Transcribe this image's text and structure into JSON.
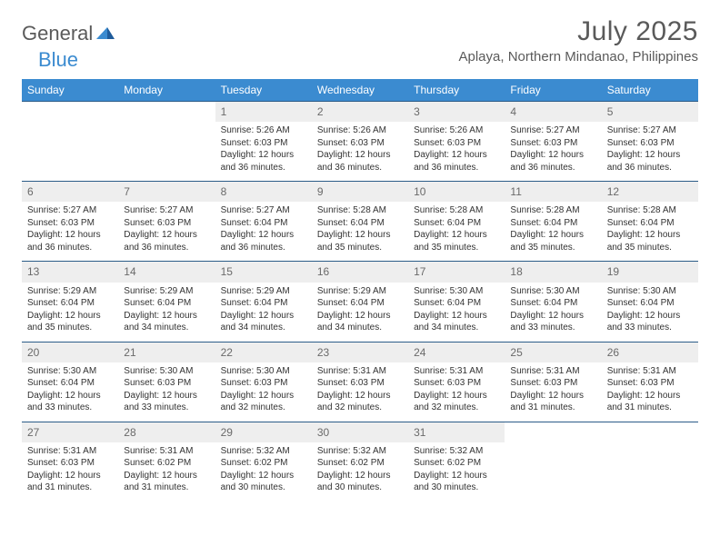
{
  "logo": {
    "general": "General",
    "blue": "Blue"
  },
  "title": "July 2025",
  "location": "Aplaya, Northern Mindanao, Philippines",
  "colors": {
    "header_bg": "#3b8bd0",
    "header_text": "#ffffff",
    "daynum_bg": "#eeeeee",
    "daynum_text": "#6a6a6a",
    "border": "#2b5c88",
    "body_text": "#333333",
    "logo_gray": "#5a5a5a",
    "logo_blue": "#3b8bd0"
  },
  "day_headers": [
    "Sunday",
    "Monday",
    "Tuesday",
    "Wednesday",
    "Thursday",
    "Friday",
    "Saturday"
  ],
  "weeks": [
    [
      {
        "empty": true
      },
      {
        "empty": true
      },
      {
        "num": "1",
        "sr": "Sunrise: 5:26 AM",
        "ss": "Sunset: 6:03 PM",
        "dl1": "Daylight: 12 hours",
        "dl2": "and 36 minutes."
      },
      {
        "num": "2",
        "sr": "Sunrise: 5:26 AM",
        "ss": "Sunset: 6:03 PM",
        "dl1": "Daylight: 12 hours",
        "dl2": "and 36 minutes."
      },
      {
        "num": "3",
        "sr": "Sunrise: 5:26 AM",
        "ss": "Sunset: 6:03 PM",
        "dl1": "Daylight: 12 hours",
        "dl2": "and 36 minutes."
      },
      {
        "num": "4",
        "sr": "Sunrise: 5:27 AM",
        "ss": "Sunset: 6:03 PM",
        "dl1": "Daylight: 12 hours",
        "dl2": "and 36 minutes."
      },
      {
        "num": "5",
        "sr": "Sunrise: 5:27 AM",
        "ss": "Sunset: 6:03 PM",
        "dl1": "Daylight: 12 hours",
        "dl2": "and 36 minutes."
      }
    ],
    [
      {
        "num": "6",
        "sr": "Sunrise: 5:27 AM",
        "ss": "Sunset: 6:03 PM",
        "dl1": "Daylight: 12 hours",
        "dl2": "and 36 minutes."
      },
      {
        "num": "7",
        "sr": "Sunrise: 5:27 AM",
        "ss": "Sunset: 6:03 PM",
        "dl1": "Daylight: 12 hours",
        "dl2": "and 36 minutes."
      },
      {
        "num": "8",
        "sr": "Sunrise: 5:27 AM",
        "ss": "Sunset: 6:04 PM",
        "dl1": "Daylight: 12 hours",
        "dl2": "and 36 minutes."
      },
      {
        "num": "9",
        "sr": "Sunrise: 5:28 AM",
        "ss": "Sunset: 6:04 PM",
        "dl1": "Daylight: 12 hours",
        "dl2": "and 35 minutes."
      },
      {
        "num": "10",
        "sr": "Sunrise: 5:28 AM",
        "ss": "Sunset: 6:04 PM",
        "dl1": "Daylight: 12 hours",
        "dl2": "and 35 minutes."
      },
      {
        "num": "11",
        "sr": "Sunrise: 5:28 AM",
        "ss": "Sunset: 6:04 PM",
        "dl1": "Daylight: 12 hours",
        "dl2": "and 35 minutes."
      },
      {
        "num": "12",
        "sr": "Sunrise: 5:28 AM",
        "ss": "Sunset: 6:04 PM",
        "dl1": "Daylight: 12 hours",
        "dl2": "and 35 minutes."
      }
    ],
    [
      {
        "num": "13",
        "sr": "Sunrise: 5:29 AM",
        "ss": "Sunset: 6:04 PM",
        "dl1": "Daylight: 12 hours",
        "dl2": "and 35 minutes."
      },
      {
        "num": "14",
        "sr": "Sunrise: 5:29 AM",
        "ss": "Sunset: 6:04 PM",
        "dl1": "Daylight: 12 hours",
        "dl2": "and 34 minutes."
      },
      {
        "num": "15",
        "sr": "Sunrise: 5:29 AM",
        "ss": "Sunset: 6:04 PM",
        "dl1": "Daylight: 12 hours",
        "dl2": "and 34 minutes."
      },
      {
        "num": "16",
        "sr": "Sunrise: 5:29 AM",
        "ss": "Sunset: 6:04 PM",
        "dl1": "Daylight: 12 hours",
        "dl2": "and 34 minutes."
      },
      {
        "num": "17",
        "sr": "Sunrise: 5:30 AM",
        "ss": "Sunset: 6:04 PM",
        "dl1": "Daylight: 12 hours",
        "dl2": "and 34 minutes."
      },
      {
        "num": "18",
        "sr": "Sunrise: 5:30 AM",
        "ss": "Sunset: 6:04 PM",
        "dl1": "Daylight: 12 hours",
        "dl2": "and 33 minutes."
      },
      {
        "num": "19",
        "sr": "Sunrise: 5:30 AM",
        "ss": "Sunset: 6:04 PM",
        "dl1": "Daylight: 12 hours",
        "dl2": "and 33 minutes."
      }
    ],
    [
      {
        "num": "20",
        "sr": "Sunrise: 5:30 AM",
        "ss": "Sunset: 6:04 PM",
        "dl1": "Daylight: 12 hours",
        "dl2": "and 33 minutes."
      },
      {
        "num": "21",
        "sr": "Sunrise: 5:30 AM",
        "ss": "Sunset: 6:03 PM",
        "dl1": "Daylight: 12 hours",
        "dl2": "and 33 minutes."
      },
      {
        "num": "22",
        "sr": "Sunrise: 5:30 AM",
        "ss": "Sunset: 6:03 PM",
        "dl1": "Daylight: 12 hours",
        "dl2": "and 32 minutes."
      },
      {
        "num": "23",
        "sr": "Sunrise: 5:31 AM",
        "ss": "Sunset: 6:03 PM",
        "dl1": "Daylight: 12 hours",
        "dl2": "and 32 minutes."
      },
      {
        "num": "24",
        "sr": "Sunrise: 5:31 AM",
        "ss": "Sunset: 6:03 PM",
        "dl1": "Daylight: 12 hours",
        "dl2": "and 32 minutes."
      },
      {
        "num": "25",
        "sr": "Sunrise: 5:31 AM",
        "ss": "Sunset: 6:03 PM",
        "dl1": "Daylight: 12 hours",
        "dl2": "and 31 minutes."
      },
      {
        "num": "26",
        "sr": "Sunrise: 5:31 AM",
        "ss": "Sunset: 6:03 PM",
        "dl1": "Daylight: 12 hours",
        "dl2": "and 31 minutes."
      }
    ],
    [
      {
        "num": "27",
        "sr": "Sunrise: 5:31 AM",
        "ss": "Sunset: 6:03 PM",
        "dl1": "Daylight: 12 hours",
        "dl2": "and 31 minutes."
      },
      {
        "num": "28",
        "sr": "Sunrise: 5:31 AM",
        "ss": "Sunset: 6:02 PM",
        "dl1": "Daylight: 12 hours",
        "dl2": "and 31 minutes."
      },
      {
        "num": "29",
        "sr": "Sunrise: 5:32 AM",
        "ss": "Sunset: 6:02 PM",
        "dl1": "Daylight: 12 hours",
        "dl2": "and 30 minutes."
      },
      {
        "num": "30",
        "sr": "Sunrise: 5:32 AM",
        "ss": "Sunset: 6:02 PM",
        "dl1": "Daylight: 12 hours",
        "dl2": "and 30 minutes."
      },
      {
        "num": "31",
        "sr": "Sunrise: 5:32 AM",
        "ss": "Sunset: 6:02 PM",
        "dl1": "Daylight: 12 hours",
        "dl2": "and 30 minutes."
      },
      {
        "empty": true
      },
      {
        "empty": true
      }
    ]
  ]
}
